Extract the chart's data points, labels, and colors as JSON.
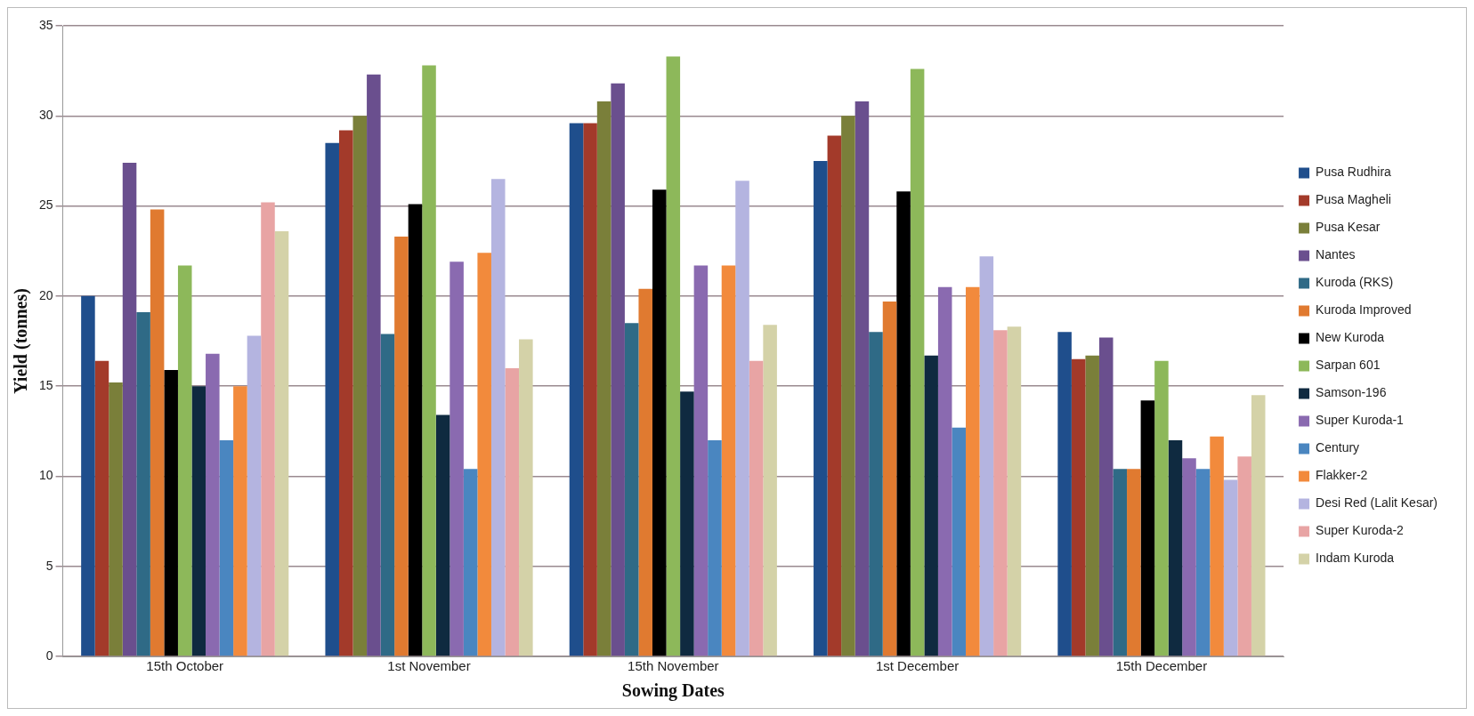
{
  "chart_data": {
    "type": "bar",
    "xlabel": "Sowing Dates",
    "ylabel": "Yield (tonnes)",
    "categories": [
      "15th October",
      "1st November",
      "15th November",
      "1st December",
      "15th December"
    ],
    "series": [
      {
        "name": "Pusa Rudhira",
        "color": "#1f4e8c",
        "values": [
          20.0,
          28.5,
          29.6,
          27.5,
          18.0
        ]
      },
      {
        "name": "Pusa Magheli",
        "color": "#a33a2a",
        "values": [
          16.4,
          29.2,
          29.6,
          28.9,
          16.5
        ]
      },
      {
        "name": "Pusa Kesar",
        "color": "#7a7f3a",
        "values": [
          15.2,
          30.0,
          30.8,
          30.0,
          16.7
        ]
      },
      {
        "name": "Nantes",
        "color": "#6a4f8e",
        "values": [
          27.4,
          32.3,
          31.8,
          30.8,
          17.7
        ]
      },
      {
        "name": "Kuroda (RKS)",
        "color": "#2f6a86",
        "values": [
          19.1,
          17.9,
          18.5,
          18.0,
          10.4
        ]
      },
      {
        "name": "Kuroda Improved",
        "color": "#e07a30",
        "values": [
          24.8,
          23.3,
          20.4,
          19.7,
          10.4
        ]
      },
      {
        "name": "New Kuroda",
        "color": "#000000",
        "values": [
          15.9,
          25.1,
          25.9,
          25.8,
          14.2
        ]
      },
      {
        "name": "Sarpan 601",
        "color": "#8db85a",
        "values": [
          21.7,
          32.8,
          33.3,
          32.6,
          16.4
        ]
      },
      {
        "name": "Samson-196",
        "color": "#0f2a40",
        "values": [
          15.0,
          13.4,
          14.7,
          16.7,
          12.0
        ]
      },
      {
        "name": "Super Kuroda-1",
        "color": "#8a6ab0",
        "values": [
          16.8,
          21.9,
          21.7,
          20.5,
          11.0
        ]
      },
      {
        "name": "Century",
        "color": "#4a86c0",
        "values": [
          12.0,
          10.4,
          12.0,
          12.7,
          10.4
        ]
      },
      {
        "name": "Flakker-2",
        "color": "#f28a3c",
        "values": [
          15.0,
          22.4,
          21.7,
          20.5,
          12.2
        ]
      },
      {
        "name": "Desi Red (Lalit Kesar)",
        "color": "#b4b4e0",
        "values": [
          17.8,
          26.5,
          26.4,
          22.2,
          9.8
        ]
      },
      {
        "name": "Super Kuroda-2",
        "color": "#e8a4a4",
        "values": [
          25.2,
          16.0,
          16.4,
          18.1,
          11.1
        ]
      },
      {
        "name": "Indam Kuroda",
        "color": "#d4d2a8",
        "values": [
          23.6,
          17.6,
          18.4,
          18.3,
          14.5
        ]
      }
    ],
    "ylim": [
      0,
      35
    ],
    "yticks": [
      0,
      5,
      10,
      15,
      20,
      25,
      30,
      35
    ],
    "grid": "y",
    "legend": "right"
  }
}
